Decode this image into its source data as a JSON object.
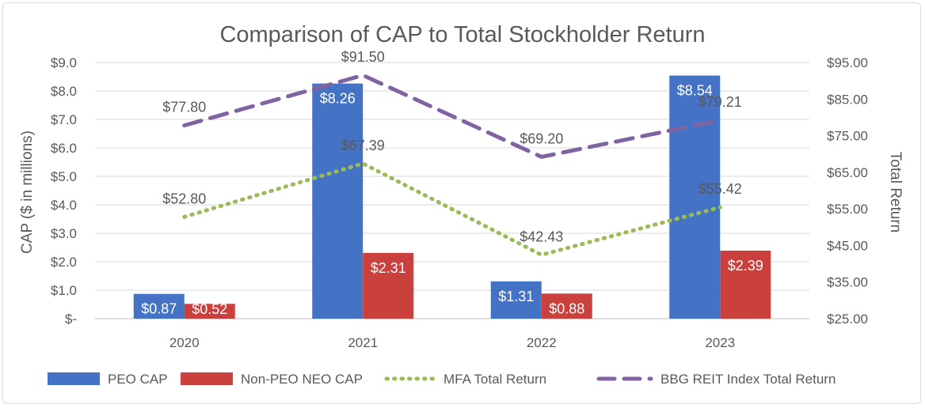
{
  "chart_data": {
    "type": "bar",
    "title": "Comparison of CAP to Total Stockholder Return",
    "categories": [
      "2020",
      "2021",
      "2022",
      "2023"
    ],
    "ylabel": "CAP ($ in millions)",
    "ylabel_right": "Total Return",
    "ylim": [
      0,
      9
    ],
    "ylim_right": [
      25,
      95
    ],
    "y_ticks": [
      "$-",
      "$1.0",
      "$2.0",
      "$3.0",
      "$4.0",
      "$5.0",
      "$6.0",
      "$7.0",
      "$8.0",
      "$9.0"
    ],
    "y_ticks_right": [
      "$25.00",
      "$35.00",
      "$45.00",
      "$55.00",
      "$65.00",
      "$75.00",
      "$85.00",
      "$95.00"
    ],
    "grid": true,
    "bar_series": [
      {
        "name": "PEO CAP",
        "color": "#4472c4",
        "values": [
          0.87,
          8.26,
          1.31,
          8.54
        ],
        "labels": [
          "$0.87",
          "$8.26",
          "$1.31",
          "$8.54"
        ]
      },
      {
        "name": "Non-PEO NEO CAP",
        "color": "#c9403d",
        "values": [
          0.52,
          2.31,
          0.88,
          2.39
        ],
        "labels": [
          "$0.52",
          "$2.31",
          "$0.88",
          "$2.39"
        ]
      }
    ],
    "line_series": [
      {
        "name": "MFA Total Return",
        "color": "#9bbb59",
        "style": "dotted",
        "axis": "right",
        "values": [
          52.8,
          67.39,
          42.43,
          55.42
        ],
        "labels": [
          "$52.80",
          "$67.39",
          "$42.43",
          "$55.42"
        ]
      },
      {
        "name": "BBG REIT Index Total Return",
        "color": "#8064a2",
        "style": "dashed",
        "axis": "right",
        "values": [
          77.8,
          91.5,
          69.2,
          79.21
        ],
        "labels": [
          "$77.80",
          "$91.50",
          "$69.20",
          "$79.21"
        ]
      }
    ],
    "legend": [
      "PEO CAP",
      "Non-PEO NEO CAP",
      "MFA Total Return",
      "BBG REIT Index Total Return"
    ],
    "legend_position": "bottom"
  }
}
